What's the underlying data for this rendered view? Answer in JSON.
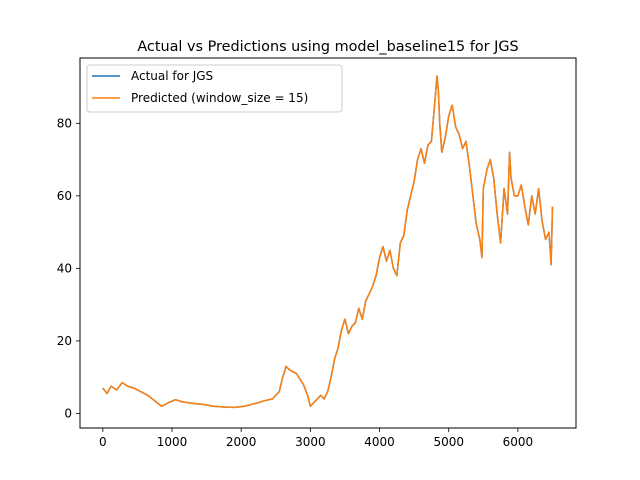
{
  "chart_data": {
    "type": "line",
    "title": "Actual vs Predictions using model_baseline15 for JGS",
    "xlabel": "",
    "ylabel": "",
    "xlim": [
      -330,
      6840
    ],
    "ylim": [
      -4,
      98
    ],
    "xticks": [
      0,
      1000,
      2000,
      3000,
      4000,
      5000,
      6000
    ],
    "yticks": [
      0,
      20,
      40,
      60,
      80
    ],
    "grid": false,
    "legend_position": "upper-left",
    "series": [
      {
        "name": "Actual for JGS",
        "color": "#1f77b4",
        "x": [
          0,
          60,
          120,
          200,
          280,
          360,
          450,
          550,
          650,
          750,
          850,
          950,
          1050,
          1150,
          1300,
          1450,
          1600,
          1750,
          1900,
          2050,
          2150,
          2250,
          2350,
          2450,
          2550,
          2600,
          2650,
          2700,
          2800,
          2900,
          2960,
          3000,
          3050,
          3100,
          3150,
          3200,
          3250,
          3300,
          3350,
          3400,
          3450,
          3500,
          3550,
          3600,
          3650,
          3700,
          3750,
          3800,
          3850,
          3900,
          3950,
          4000,
          4050,
          4100,
          4150,
          4200,
          4250,
          4300,
          4350,
          4400,
          4450,
          4500,
          4550,
          4600,
          4650,
          4700,
          4750,
          4800,
          4830,
          4850,
          4870,
          4900,
          4950,
          5000,
          5050,
          5100,
          5150,
          5200,
          5250,
          5300,
          5350,
          5400,
          5450,
          5480,
          5500,
          5550,
          5600,
          5650,
          5700,
          5750,
          5800,
          5850,
          5880,
          5900,
          5950,
          6000,
          6050,
          6100,
          6150,
          6200,
          6250,
          6300,
          6350,
          6400,
          6450,
          6480,
          6500
        ],
        "y": [
          7,
          5.5,
          7.5,
          6.5,
          8.5,
          7.5,
          7,
          6,
          5,
          3.5,
          2,
          3,
          3.8,
          3.2,
          2.8,
          2.5,
          2,
          1.8,
          1.7,
          2,
          2.5,
          3,
          3.6,
          4,
          6,
          10,
          13,
          12,
          11,
          8,
          5,
          2,
          3,
          4,
          5,
          4,
          6,
          10,
          15,
          18,
          23,
          26,
          22,
          24,
          25,
          29,
          26,
          31,
          33,
          35,
          38,
          43,
          46,
          42,
          45,
          40,
          38,
          47,
          49,
          56,
          60,
          64,
          70,
          73,
          69,
          74,
          75,
          86,
          93,
          89,
          80,
          72,
          76,
          82,
          85,
          79,
          77,
          73,
          75,
          68,
          60,
          52,
          48,
          43,
          62,
          67,
          70,
          65,
          55,
          47,
          62,
          55,
          72,
          65,
          60,
          60,
          63,
          57,
          52,
          60,
          55,
          62,
          53,
          48,
          50,
          41,
          57
        ]
      },
      {
        "name": "Predicted (window_size = 15)",
        "color": "#ff7f0e",
        "x": [
          0,
          60,
          120,
          200,
          280,
          360,
          450,
          550,
          650,
          750,
          850,
          950,
          1050,
          1150,
          1300,
          1450,
          1600,
          1750,
          1900,
          2050,
          2150,
          2250,
          2350,
          2450,
          2550,
          2600,
          2650,
          2700,
          2800,
          2900,
          2960,
          3000,
          3050,
          3100,
          3150,
          3200,
          3250,
          3300,
          3350,
          3400,
          3450,
          3500,
          3550,
          3600,
          3650,
          3700,
          3750,
          3800,
          3850,
          3900,
          3950,
          4000,
          4050,
          4100,
          4150,
          4200,
          4250,
          4300,
          4350,
          4400,
          4450,
          4500,
          4550,
          4600,
          4650,
          4700,
          4750,
          4800,
          4830,
          4850,
          4870,
          4900,
          4950,
          5000,
          5050,
          5100,
          5150,
          5200,
          5250,
          5300,
          5350,
          5400,
          5450,
          5480,
          5500,
          5550,
          5600,
          5650,
          5700,
          5750,
          5800,
          5850,
          5880,
          5900,
          5950,
          6000,
          6050,
          6100,
          6150,
          6200,
          6250,
          6300,
          6350,
          6400,
          6450,
          6480,
          6500
        ],
        "y": [
          7,
          5.5,
          7.5,
          6.5,
          8.5,
          7.5,
          7,
          6,
          5,
          3.5,
          2,
          3,
          3.8,
          3.2,
          2.8,
          2.5,
          2,
          1.8,
          1.7,
          2,
          2.5,
          3,
          3.6,
          4,
          6,
          10,
          13,
          12,
          11,
          8,
          5,
          2,
          3,
          4,
          5,
          4,
          6,
          10,
          15,
          18,
          23,
          26,
          22,
          24,
          25,
          29,
          26,
          31,
          33,
          35,
          38,
          43,
          46,
          42,
          45,
          40,
          38,
          47,
          49,
          56,
          60,
          64,
          70,
          73,
          69,
          74,
          75,
          86,
          93,
          89,
          80,
          72,
          76,
          82,
          85,
          79,
          77,
          73,
          75,
          68,
          60,
          52,
          48,
          43,
          62,
          67,
          70,
          65,
          55,
          47,
          62,
          55,
          72,
          65,
          60,
          60,
          63,
          57,
          52,
          60,
          55,
          62,
          53,
          48,
          50,
          41,
          57
        ]
      }
    ]
  }
}
